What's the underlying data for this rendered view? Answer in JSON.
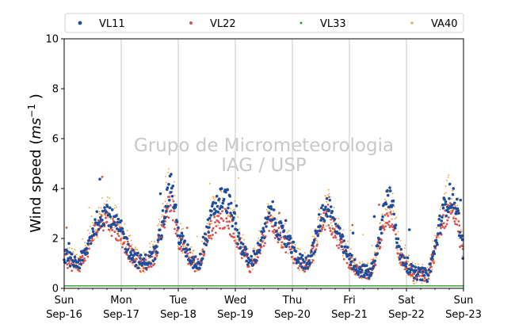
{
  "chart_data": {
    "type": "scatter",
    "ylabel_main": "Wind speed (",
    "ylabel_unit_base": "ms",
    "ylabel_unit_exp": "−1",
    "ylabel_close": " )",
    "xlabel": "",
    "ylim": [
      0,
      10
    ],
    "yticks": [
      0,
      2,
      4,
      6,
      8,
      10
    ],
    "xlim": [
      "2018-09-16",
      "2018-09-23"
    ],
    "x_ticks": [
      {
        "day": "Sun",
        "date": "Sep-16"
      },
      {
        "day": "Mon",
        "date": "Sep-17"
      },
      {
        "day": "Tue",
        "date": "Sep-18"
      },
      {
        "day": "Wed",
        "date": "Sep-19"
      },
      {
        "day": "Thu",
        "date": "Sep-20"
      },
      {
        "day": "Fri",
        "date": "Sep-21"
      },
      {
        "day": "Sat",
        "date": "Sep-22"
      },
      {
        "day": "Sun",
        "date": "Sep-23"
      }
    ],
    "grid": "vertical at major ticks",
    "legend_position": "top",
    "watermark": [
      "Grupo de Micrometeorologia",
      "IAG / USP"
    ],
    "daily_profile_hours": [
      0,
      3,
      6,
      9,
      12,
      15,
      18,
      21,
      24
    ],
    "series": [
      {
        "name": "VL11",
        "color": "#1f4e9c",
        "marker": "dot-large",
        "daily_profile": [
          [
            1.3,
            1.1,
            1.0,
            1.4,
            2.3,
            2.9,
            3.1,
            2.6,
            2.3
          ],
          [
            2.3,
            1.6,
            1.2,
            1.0,
            1.2,
            1.5,
            3.0,
            4.3,
            2.2
          ],
          [
            2.2,
            1.6,
            1.1,
            1.0,
            2.2,
            3.2,
            3.6,
            3.5,
            2.5
          ],
          [
            2.4,
            1.6,
            1.0,
            1.4,
            2.2,
            3.2,
            2.4,
            2.0,
            1.6
          ],
          [
            1.6,
            1.1,
            1.0,
            1.6,
            2.9,
            3.4,
            2.5,
            1.8,
            1.2
          ],
          [
            1.2,
            0.8,
            0.7,
            0.6,
            1.6,
            3.5,
            3.6,
            1.4,
            1.0
          ],
          [
            1.0,
            0.6,
            0.6,
            0.5,
            1.6,
            3.0,
            3.7,
            3.4,
            1.3
          ]
        ]
      },
      {
        "name": "VL22",
        "color": "#d9534f",
        "marker": "dot",
        "daily_profile": [
          [
            1.2,
            1.0,
            0.9,
            1.3,
            2.1,
            2.6,
            2.8,
            2.4,
            2.1
          ],
          [
            2.1,
            1.5,
            1.1,
            0.9,
            1.1,
            1.4,
            2.7,
            3.6,
            2.0
          ],
          [
            2.0,
            1.5,
            1.0,
            0.9,
            2.0,
            2.6,
            2.8,
            2.7,
            2.2
          ],
          [
            2.2,
            1.5,
            0.9,
            1.3,
            2.0,
            2.8,
            2.1,
            1.8,
            1.4
          ],
          [
            1.4,
            1.0,
            0.9,
            1.5,
            2.5,
            2.9,
            2.2,
            1.6,
            1.1
          ],
          [
            1.1,
            0.7,
            0.6,
            0.6,
            1.5,
            2.6,
            2.9,
            1.3,
            0.9
          ],
          [
            0.9,
            0.5,
            0.5,
            0.5,
            1.5,
            2.6,
            3.2,
            2.9,
            1.2
          ]
        ]
      },
      {
        "name": "VL33",
        "color": "#2ca02c",
        "marker": "dot-small",
        "constant_value": 0.1
      },
      {
        "name": "VA40",
        "color": "#f0a030",
        "marker": "dot-small",
        "daily_profile": [
          [
            1.4,
            1.2,
            1.0,
            1.5,
            2.4,
            2.9,
            3.2,
            2.7,
            2.4
          ],
          [
            2.4,
            1.7,
            1.2,
            1.0,
            1.3,
            1.8,
            3.4,
            4.5,
            2.3
          ],
          [
            2.3,
            1.7,
            1.1,
            1.0,
            2.3,
            3.1,
            3.4,
            3.2,
            2.6
          ],
          [
            2.5,
            1.7,
            1.0,
            1.5,
            2.3,
            3.2,
            2.5,
            2.1,
            1.7
          ],
          [
            1.7,
            1.2,
            1.0,
            1.7,
            2.9,
            3.3,
            2.5,
            1.9,
            1.3
          ],
          [
            1.3,
            0.8,
            0.7,
            0.7,
            1.7,
            3.0,
            3.3,
            1.5,
            1.1
          ],
          [
            1.1,
            0.6,
            0.6,
            0.6,
            1.7,
            3.0,
            3.8,
            3.4,
            1.4
          ]
        ]
      }
    ]
  }
}
